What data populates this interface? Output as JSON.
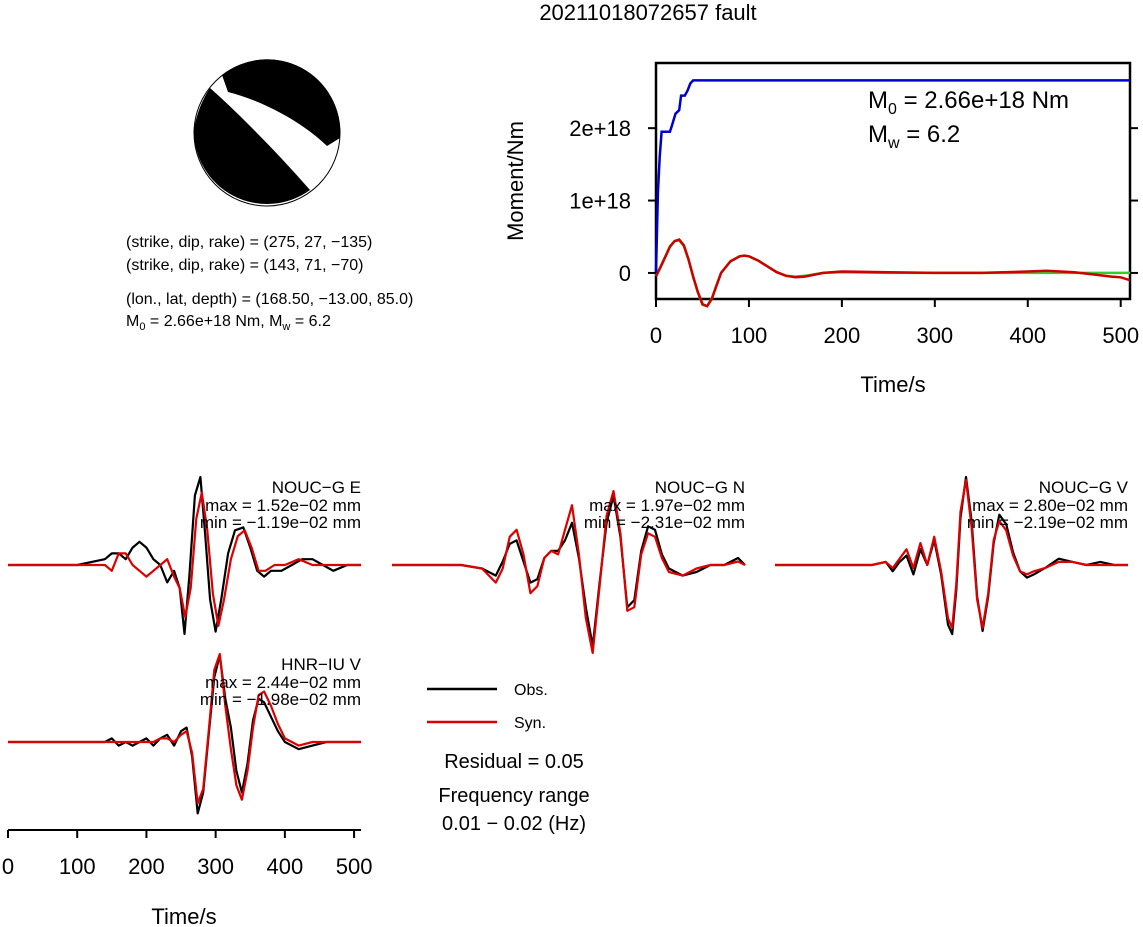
{
  "title": "20211018072657 fault",
  "mechanism": {
    "plane1": "(strike, dip, rake) = (275, 27, −135)",
    "plane2": "(strike, dip, rake) = (143, 71, −70)",
    "location": "(lon., lat, depth) = (168.50, −13.00, 85.0)",
    "m0_prefix": "M",
    "m0_sub": "0",
    "m0_mid": " = 2.66e+18 Nm, M",
    "mw_sub": "w",
    "mw_tail": " = 6.2"
  },
  "moment_panel": {
    "m0_main": "M",
    "m0_sub": "0",
    "m0_value": " = 2.66e+18 Nm",
    "mw_main": "M",
    "mw_sub": "w",
    "mw_value": " = 6.2"
  },
  "legend": {
    "obs": "Obs.",
    "syn": "Syn.",
    "residual": "Residual = 0.05",
    "freq_title": "Frequency range",
    "freq_value": "0.01 − 0.02 (Hz)"
  },
  "colors": {
    "moment": "#0000cc",
    "stf_obs": "#cc0000",
    "stf_syn": "#33cc33",
    "obs": "#000000",
    "syn": "#dd0000"
  },
  "chart_data": [
    {
      "type": "line",
      "title": "",
      "xlabel": "Time/s",
      "ylabel": "Moment/Nm",
      "xlim": [
        0,
        510
      ],
      "ylim": [
        -3.6e+17,
        2.9e+18
      ],
      "xticks": [
        0,
        100,
        200,
        300,
        400,
        500
      ],
      "xticklabels": [
        "0",
        "100",
        "200",
        "300",
        "400",
        "500"
      ],
      "yticks": [
        0,
        1e+18,
        2e+18
      ],
      "yticklabels": [
        "0",
        "1e+18",
        "2e+18"
      ],
      "series": [
        {
          "color": "#0000cc",
          "x": [
            0,
            2,
            4,
            6,
            15,
            17,
            21,
            25,
            27,
            31,
            34,
            37,
            40,
            510
          ],
          "y": [
            0,
            1.1e+18,
            1.6e+18,
            1.95e+18,
            1.95e+18,
            2.03e+18,
            2.2e+18,
            2.25e+18,
            2.45e+18,
            2.45e+18,
            2.52e+18,
            2.62e+18,
            2.66e+18,
            2.66e+18
          ]
        },
        {
          "color": "#cc0000",
          "x": [
            0,
            5,
            10,
            15,
            20,
            25,
            30,
            35,
            40,
            45,
            50,
            55,
            60,
            65,
            70,
            80,
            90,
            95,
            100,
            110,
            120,
            130,
            140,
            150,
            160,
            180,
            200,
            250,
            300,
            350,
            400,
            420,
            450,
            470,
            490,
            500,
            510
          ],
          "y": [
            -5e+16,
            8e+16,
            2.2e+17,
            3.6e+17,
            4.4e+17,
            4.6e+17,
            3.8e+17,
            1.9e+17,
            -5e+16,
            -2.6e+17,
            -4.3e+17,
            -4.6e+17,
            -3.6e+17,
            -1.8e+17,
            0,
            1.6e+17,
            2.3e+17,
            2.4e+17,
            2.3e+17,
            1.7e+17,
            9e+16,
            1e+16,
            -4e+16,
            -6e+16,
            -5e+16,
            0,
            2e+16,
            1e+16,
            0,
            0,
            2e+16,
            3e+16,
            1e+16,
            -2e+16,
            -5e+16,
            -6e+16,
            -1e+17
          ]
        },
        {
          "color": "#33cc33",
          "x": [
            0,
            5,
            10,
            15,
            20,
            25,
            30,
            35,
            40,
            45,
            50,
            55,
            60,
            65,
            70,
            80,
            90,
            95,
            100,
            110,
            120,
            130,
            140,
            150,
            160,
            180,
            200,
            250,
            300,
            350,
            400,
            450,
            510
          ],
          "y": [
            -4e+16,
            9e+16,
            2.3e+17,
            3.7e+17,
            4.4e+17,
            4.5e+17,
            3.7e+17,
            1.8e+17,
            -6e+16,
            -2.7e+17,
            -4.4e+17,
            -4.6e+17,
            -3.5e+17,
            -1.7e+17,
            0,
            1.6e+17,
            2.3e+17,
            2.4e+17,
            2.3e+17,
            1.7e+17,
            9e+16,
            1e+16,
            -4e+16,
            -5e+16,
            -4e+16,
            0,
            1e+16,
            0,
            0,
            0,
            0,
            0,
            0
          ]
        }
      ]
    },
    {
      "type": "line",
      "title": "NOUC−G E",
      "annotations": [
        "max = 1.52e−02 mm",
        "min = −1.19e−02 mm"
      ],
      "xlim": [
        0,
        510
      ],
      "series": [
        {
          "name": "Obs.",
          "color": "#000000",
          "x": [
            0,
            100,
            140,
            150,
            160,
            170,
            180,
            190,
            200,
            210,
            220,
            230,
            240,
            248,
            255,
            262,
            270,
            278,
            285,
            292,
            300,
            308,
            318,
            328,
            340,
            350,
            360,
            370,
            380,
            395,
            410,
            425,
            440,
            455,
            470,
            490,
            510
          ],
          "y": [
            0,
            0,
            0.001,
            0.002,
            0.002,
            0.001,
            0.003,
            0.004,
            0.003,
            0.001,
            0,
            -0.003,
            -0.001,
            -0.004,
            -0.0119,
            -0.002,
            0.012,
            0.0152,
            0.005,
            -0.006,
            -0.0115,
            -0.006,
            0.002,
            0.006,
            0.0065,
            0.003,
            -0.001,
            -0.002,
            -0.001,
            -0.001,
            0,
            0.001,
            0.001,
            0,
            -0.001,
            0,
            0
          ]
        },
        {
          "name": "Syn.",
          "color": "#dd0000",
          "x": [
            0,
            100,
            140,
            150,
            160,
            170,
            180,
            190,
            200,
            210,
            220,
            230,
            240,
            248,
            256,
            264,
            272,
            280,
            288,
            296,
            304,
            312,
            322,
            332,
            342,
            352,
            362,
            372,
            385,
            400,
            420,
            440,
            460,
            480,
            500,
            510
          ],
          "y": [
            0,
            0,
            0,
            -0.001,
            0.002,
            0.002,
            0,
            -0.001,
            -0.002,
            -0.001,
            0,
            0.001,
            -0.002,
            -0.004,
            -0.009,
            -0.004,
            0.008,
            0.0125,
            0.006,
            -0.005,
            -0.0105,
            -0.006,
            0.001,
            0.005,
            0.006,
            0.003,
            -0.001,
            -0.001,
            0,
            0,
            0.001,
            0,
            0,
            0,
            0,
            0
          ]
        }
      ]
    },
    {
      "type": "line",
      "title": "NOUC−G N",
      "annotations": [
        "max = 1.97e−02 mm",
        "min = −2.31e−02 mm"
      ],
      "xlim": [
        0,
        510
      ],
      "series": [
        {
          "name": "Obs.",
          "color": "#000000",
          "x": [
            0,
            100,
            130,
            150,
            160,
            170,
            180,
            190,
            200,
            210,
            220,
            230,
            240,
            250,
            260,
            270,
            280,
            290,
            300,
            310,
            320,
            330,
            340,
            350,
            360,
            370,
            380,
            390,
            400,
            420,
            440,
            460,
            480,
            500,
            510
          ],
          "y": [
            0,
            0,
            -0.001,
            -0.003,
            0.001,
            0.006,
            0.007,
            0.001,
            -0.005,
            -0.004,
            0.002,
            0.004,
            0.004,
            0.007,
            0.012,
            0.002,
            -0.012,
            -0.0231,
            -0.005,
            0.012,
            0.0197,
            0.008,
            -0.012,
            -0.01,
            0.004,
            0.011,
            0.01,
            0.003,
            -0.001,
            -0.003,
            -0.002,
            0,
            0,
            0.002,
            0
          ]
        },
        {
          "name": "Syn.",
          "color": "#dd0000",
          "x": [
            0,
            100,
            130,
            150,
            160,
            170,
            180,
            190,
            200,
            210,
            220,
            230,
            240,
            250,
            260,
            270,
            280,
            290,
            300,
            310,
            320,
            330,
            340,
            350,
            360,
            370,
            380,
            390,
            400,
            420,
            440,
            460,
            480,
            500,
            510
          ],
          "y": [
            0,
            0,
            -0.001,
            -0.005,
            -0.001,
            0.008,
            0.01,
            0.003,
            -0.008,
            -0.006,
            0.002,
            0.004,
            0.003,
            0.01,
            0.017,
            0.003,
            -0.015,
            -0.025,
            -0.006,
            0.014,
            0.021,
            0.009,
            -0.013,
            -0.012,
            0.003,
            0.009,
            0.008,
            0.002,
            -0.002,
            -0.003,
            -0.001,
            0,
            0,
            0.001,
            0
          ]
        }
      ]
    },
    {
      "type": "line",
      "title": "NOUC−G V",
      "annotations": [
        "max = 2.80e−02 mm",
        "min = −2.19e−02 mm"
      ],
      "xlim": [
        0,
        510
      ],
      "series": [
        {
          "name": "Obs.",
          "color": "#000000",
          "x": [
            0,
            100,
            140,
            160,
            170,
            180,
            190,
            200,
            210,
            220,
            230,
            240,
            250,
            256,
            262,
            268,
            276,
            284,
            292,
            300,
            308,
            316,
            324,
            334,
            344,
            354,
            364,
            374,
            390,
            410,
            430,
            450,
            470,
            490,
            510
          ],
          "y": [
            0,
            0,
            0,
            0.001,
            -0.002,
            0.001,
            0.003,
            -0.003,
            0.005,
            0,
            0.008,
            -0.003,
            -0.019,
            -0.022,
            -0.008,
            0.015,
            0.028,
            0.014,
            -0.01,
            -0.021,
            -0.01,
            0.007,
            0.016,
            0.013,
            0.004,
            -0.002,
            -0.004,
            -0.003,
            -0.001,
            0.002,
            0.001,
            0,
            0.001,
            0,
            0
          ]
        },
        {
          "name": "Syn.",
          "color": "#dd0000",
          "x": [
            0,
            100,
            140,
            160,
            170,
            180,
            190,
            200,
            210,
            220,
            230,
            240,
            250,
            256,
            262,
            268,
            276,
            284,
            292,
            300,
            308,
            316,
            324,
            334,
            344,
            354,
            364,
            374,
            390,
            410,
            430,
            450,
            470,
            490,
            510
          ],
          "y": [
            0,
            0,
            0,
            0.001,
            -0.001,
            0.002,
            0.005,
            -0.001,
            0.007,
            0,
            0.009,
            -0.002,
            -0.017,
            -0.02,
            -0.006,
            0.017,
            0.027,
            0.012,
            -0.011,
            -0.02,
            -0.009,
            0.008,
            0.014,
            0.011,
            0.003,
            -0.002,
            -0.003,
            -0.002,
            -0.001,
            0.001,
            0.001,
            0,
            0,
            0,
            0
          ]
        }
      ]
    },
    {
      "type": "line",
      "title": "HNR−IU V",
      "annotations": [
        "max = 2.44e−02 mm",
        "min = −1.98e−02 mm"
      ],
      "xlabel": "Time/s",
      "xlim": [
        0,
        510
      ],
      "xticks": [
        0,
        100,
        200,
        300,
        400,
        500
      ],
      "xticklabels": [
        "0",
        "100",
        "200",
        "300",
        "400",
        "500"
      ],
      "series": [
        {
          "name": "Obs.",
          "color": "#000000",
          "x": [
            0,
            100,
            140,
            150,
            160,
            170,
            180,
            190,
            200,
            210,
            220,
            230,
            240,
            250,
            258,
            266,
            274,
            282,
            290,
            298,
            306,
            314,
            322,
            330,
            338,
            346,
            354,
            362,
            370,
            380,
            390,
            400,
            420,
            440,
            460,
            480,
            510
          ],
          "y": [
            0,
            0,
            0,
            0.001,
            -0.001,
            0,
            -0.001,
            0,
            0.001,
            -0.001,
            0.001,
            0.002,
            -0.001,
            0.003,
            0.004,
            -0.004,
            -0.0198,
            -0.014,
            0.002,
            0.018,
            0.024,
            0.012,
            0.004,
            -0.008,
            -0.014,
            -0.006,
            0.006,
            0.012,
            0.011,
            0.007,
            0.003,
            0,
            -0.002,
            -0.001,
            0,
            0,
            0
          ]
        },
        {
          "name": "Syn.",
          "color": "#dd0000",
          "x": [
            0,
            100,
            140,
            150,
            160,
            170,
            180,
            190,
            200,
            210,
            220,
            230,
            240,
            250,
            258,
            266,
            274,
            282,
            290,
            298,
            306,
            314,
            322,
            330,
            338,
            346,
            354,
            362,
            370,
            380,
            390,
            400,
            420,
            440,
            460,
            480,
            510
          ],
          "y": [
            0,
            0,
            0,
            0,
            0,
            0,
            0,
            0,
            0,
            0,
            0.001,
            0.001,
            0,
            0.002,
            0.003,
            -0.003,
            -0.017,
            -0.013,
            0.003,
            0.02,
            0.0244,
            0.01,
            -0.002,
            -0.012,
            -0.016,
            -0.008,
            0.004,
            0.013,
            0.014,
            0.01,
            0.005,
            0.001,
            -0.001,
            0,
            0,
            0,
            0
          ]
        }
      ]
    }
  ]
}
